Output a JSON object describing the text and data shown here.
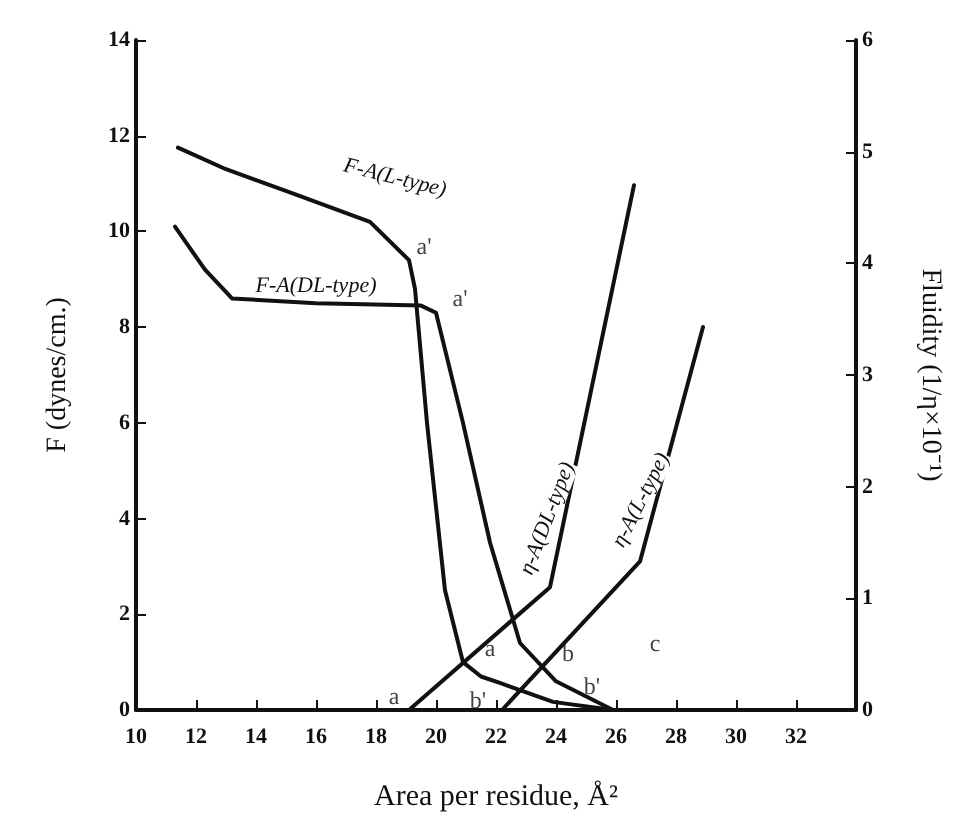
{
  "chart_data": {
    "type": "line",
    "xlabel": "Area per residue, Å²",
    "ylabel": "F (dynes/cm.)",
    "y2label": "Fluidity (1/η×10⁻¹)",
    "xlim": [
      10,
      34
    ],
    "xticks": [
      10,
      12,
      14,
      16,
      18,
      20,
      22,
      24,
      26,
      28,
      30,
      32
    ],
    "ylim": [
      0,
      14
    ],
    "yticks": [
      0,
      2,
      4,
      6,
      8,
      10,
      12,
      14
    ],
    "y2lim": [
      0,
      6
    ],
    "y2ticks": [
      0,
      1,
      2,
      3,
      4,
      5,
      6
    ],
    "marker": "none",
    "line_style": "solid",
    "series": [
      {
        "name": "F-A(L-type)",
        "color": "#111111",
        "x": [
          11.4,
          13,
          15.2,
          17.8,
          19.1,
          19.3,
          19.7,
          20.3,
          20.9,
          21.5,
          22.2,
          23.9,
          25.9
        ],
        "values": [
          11.75,
          11.3,
          10.8,
          10.2,
          9.4,
          8.8,
          6.0,
          2.5,
          1.0,
          0.7,
          0.55,
          0.17,
          0
        ]
      },
      {
        "name": "F-A(DL-type)",
        "color": "#111111",
        "x": [
          11.3,
          12.3,
          13.2,
          16,
          19.5,
          20,
          20.9,
          21.8,
          22.8,
          24,
          25.9
        ],
        "values": [
          10.1,
          9.2,
          8.6,
          8.5,
          8.45,
          8.3,
          6.0,
          3.5,
          1.4,
          0.6,
          0
        ]
      },
      {
        "name": "η-A(DL-type)",
        "color": "#111111",
        "axis": "y2",
        "x": [
          19.1,
          23.8,
          26.6
        ],
        "values": [
          0,
          1.1,
          4.7
        ]
      },
      {
        "name": "η-A(L-type)",
        "color": "#111111",
        "axis": "y2",
        "x": [
          22.2,
          26.8,
          28.9
        ],
        "values": [
          0,
          1.33,
          3.43
        ]
      }
    ],
    "annotations": [
      "a'",
      "a'",
      "a",
      "a",
      "b",
      "b'",
      "b'",
      "c"
    ]
  }
}
